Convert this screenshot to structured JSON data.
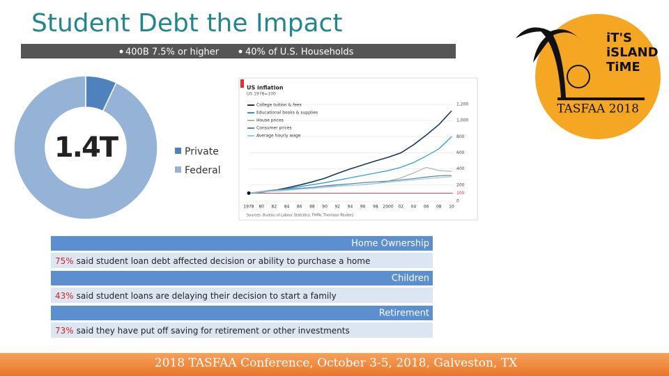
{
  "title": "Student Debt the Impact",
  "bullets": [
    "400B 7.5% or higher",
    "40% of U.S. Households"
  ],
  "chart_data": [
    {
      "type": "pie",
      "center_label": "1.4T",
      "categories": [
        "Private",
        "Federal"
      ],
      "values": [
        7,
        93
      ],
      "colors": [
        "#4f81bd",
        "#95b3d7"
      ]
    },
    {
      "type": "line",
      "title": "US inflation",
      "subtitle": "US 1978=100",
      "categories": [
        "1978",
        "80",
        "82",
        "84",
        "86",
        "88",
        "90",
        "92",
        "94",
        "96",
        "98",
        "2000",
        "02",
        "04",
        "06",
        "08",
        "10"
      ],
      "series": [
        {
          "name": "College tuition & fees",
          "color": "#17375e",
          "values": [
            100,
            110,
            135,
            165,
            200,
            240,
            285,
            345,
            400,
            450,
            500,
            545,
            600,
            700,
            820,
            950,
            1120
          ]
        },
        {
          "name": "Educational books & supplies",
          "color": "#1f9ad6",
          "values": [
            100,
            110,
            130,
            155,
            180,
            205,
            230,
            260,
            290,
            320,
            350,
            380,
            420,
            480,
            560,
            650,
            800
          ]
        },
        {
          "name": "House prices",
          "color": "#b0b0b0",
          "values": [
            100,
            115,
            125,
            135,
            150,
            170,
            185,
            190,
            195,
            205,
            220,
            250,
            290,
            350,
            420,
            380,
            370
          ]
        },
        {
          "name": "Consumer prices",
          "color": "#5b7fa6",
          "values": [
            100,
            120,
            140,
            150,
            160,
            170,
            190,
            205,
            215,
            230,
            240,
            250,
            265,
            280,
            300,
            315,
            320
          ]
        },
        {
          "name": "Average hourly wage",
          "color": "#8fd0ea",
          "values": [
            100,
            115,
            130,
            140,
            150,
            160,
            170,
            185,
            195,
            205,
            220,
            235,
            250,
            265,
            280,
            290,
            305
          ]
        }
      ],
      "ylim": [
        0,
        1200
      ],
      "yticks": [
        0,
        100,
        200,
        400,
        600,
        800,
        {
          "value": 1000,
          "label": "1,000"
        },
        {
          "value": 1200,
          "label": "1,200"
        }
      ],
      "reference_line": {
        "value": 100,
        "color": "#e03030"
      },
      "grid": true,
      "source": "Sources: Bureau of Labour Statistics; FHFA; Thomson Reuters"
    }
  ],
  "sections": [
    {
      "heading": "Home Ownership",
      "stat": "75%",
      "text": "said student loan debt affected decision or ability to purchase a home"
    },
    {
      "heading": "Children",
      "stat": "43%",
      "text": "said student loans are delaying their decision to start a family"
    },
    {
      "heading": "Retirement",
      "stat": "73%",
      "text": "said they have put off saving for retirement or other investments"
    }
  ],
  "logo": {
    "lines": [
      "iT'S",
      "iSLAND",
      "TiME"
    ],
    "caption": "TASFAA 2018"
  },
  "footer": "2018 TASFAA Conference, October 3-5, 2018, Galveston, TX"
}
